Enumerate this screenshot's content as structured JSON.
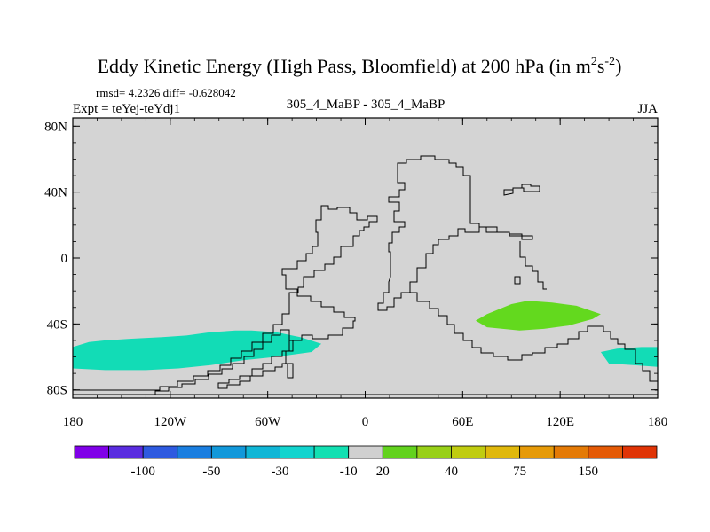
{
  "chart_data": {
    "type": "heatmap",
    "title": "Eddy Kinetic Energy (High Pass, Bloomfield) at 200 hPa (in m",
    "title_units_exp": [
      "2",
      "s",
      "-2",
      ")"
    ],
    "stats": "rmsd= 4.2326 diff= -0.628042",
    "expt": "Expt = teYej-teYdj1",
    "center_label": "305_4_MaBP - 305_4_MaBP",
    "season": "JJA",
    "x_ticks": [
      {
        "lon": -180,
        "label": "180"
      },
      {
        "lon": -120,
        "label": "120W"
      },
      {
        "lon": -60,
        "label": "60W"
      },
      {
        "lon": 0,
        "label": "0"
      },
      {
        "lon": 60,
        "label": "60E"
      },
      {
        "lon": 120,
        "label": "120E"
      },
      {
        "lon": 180,
        "label": "180"
      }
    ],
    "y_ticks": [
      {
        "lat": 80,
        "label": "80N"
      },
      {
        "lat": 40,
        "label": "40N"
      },
      {
        "lat": 0,
        "label": "0"
      },
      {
        "lat": -40,
        "label": "40S"
      },
      {
        "lat": -80,
        "label": "80S"
      }
    ],
    "xlim": [
      -180,
      180
    ],
    "ylim": [
      -85,
      85
    ],
    "background_color": "#d4d4d4",
    "features": [
      {
        "name": "south-pacific-negative-anomaly",
        "bin": "-30 to -10",
        "color": "#12dcb6",
        "outline": [
          [
            -180,
            -54
          ],
          [
            -170,
            -51
          ],
          [
            -160,
            -50
          ],
          [
            -145,
            -49
          ],
          [
            -125,
            -48
          ],
          [
            -110,
            -47
          ],
          [
            -95,
            -45
          ],
          [
            -80,
            -44
          ],
          [
            -70,
            -44
          ],
          [
            -55,
            -45
          ],
          [
            -40,
            -48
          ],
          [
            -27,
            -52
          ],
          [
            -33,
            -57
          ],
          [
            -55,
            -60
          ],
          [
            -75,
            -62
          ],
          [
            -95,
            -65
          ],
          [
            -115,
            -67
          ],
          [
            -135,
            -68
          ],
          [
            -160,
            -68
          ],
          [
            -180,
            -67
          ]
        ]
      },
      {
        "name": "indian-ocean-positive-anomaly",
        "bin": "10 to 20",
        "color": "#63d91e",
        "outline": [
          [
            68,
            -38
          ],
          [
            75,
            -34
          ],
          [
            90,
            -28
          ],
          [
            100,
            -26
          ],
          [
            115,
            -27
          ],
          [
            130,
            -29
          ],
          [
            145,
            -34
          ],
          [
            140,
            -37
          ],
          [
            125,
            -41
          ],
          [
            110,
            -43
          ],
          [
            95,
            -44
          ],
          [
            75,
            -42
          ]
        ]
      },
      {
        "name": "southwest-pacific-negative-anomaly",
        "bin": "-30 to -10",
        "color": "#12dcb6",
        "outline": [
          [
            145,
            -57
          ],
          [
            155,
            -55
          ],
          [
            170,
            -54
          ],
          [
            180,
            -54
          ],
          [
            180,
            -66
          ],
          [
            165,
            -65
          ],
          [
            150,
            -64
          ]
        ]
      }
    ],
    "colorbar": {
      "colors": [
        "#8000e8",
        "#5a2ce0",
        "#2e5ae0",
        "#1a7ee0",
        "#1298da",
        "#10b6d6",
        "#12d4ce",
        "#12e0b2",
        "#d0d0d0",
        "#62d21e",
        "#98d018",
        "#c0cc10",
        "#e0b80c",
        "#e69a08",
        "#e47a06",
        "#e45a06",
        "#e03406"
      ],
      "labels": [
        {
          "boundary": 2,
          "text": "-100"
        },
        {
          "boundary": 4,
          "text": "-50"
        },
        {
          "boundary": 6,
          "text": "-30"
        },
        {
          "boundary": 8,
          "text": "-10"
        },
        {
          "boundary": 9,
          "text": "20"
        },
        {
          "boundary": 11,
          "text": "40"
        },
        {
          "boundary": 13,
          "text": "75"
        },
        {
          "boundary": 15,
          "text": "150"
        }
      ]
    }
  }
}
